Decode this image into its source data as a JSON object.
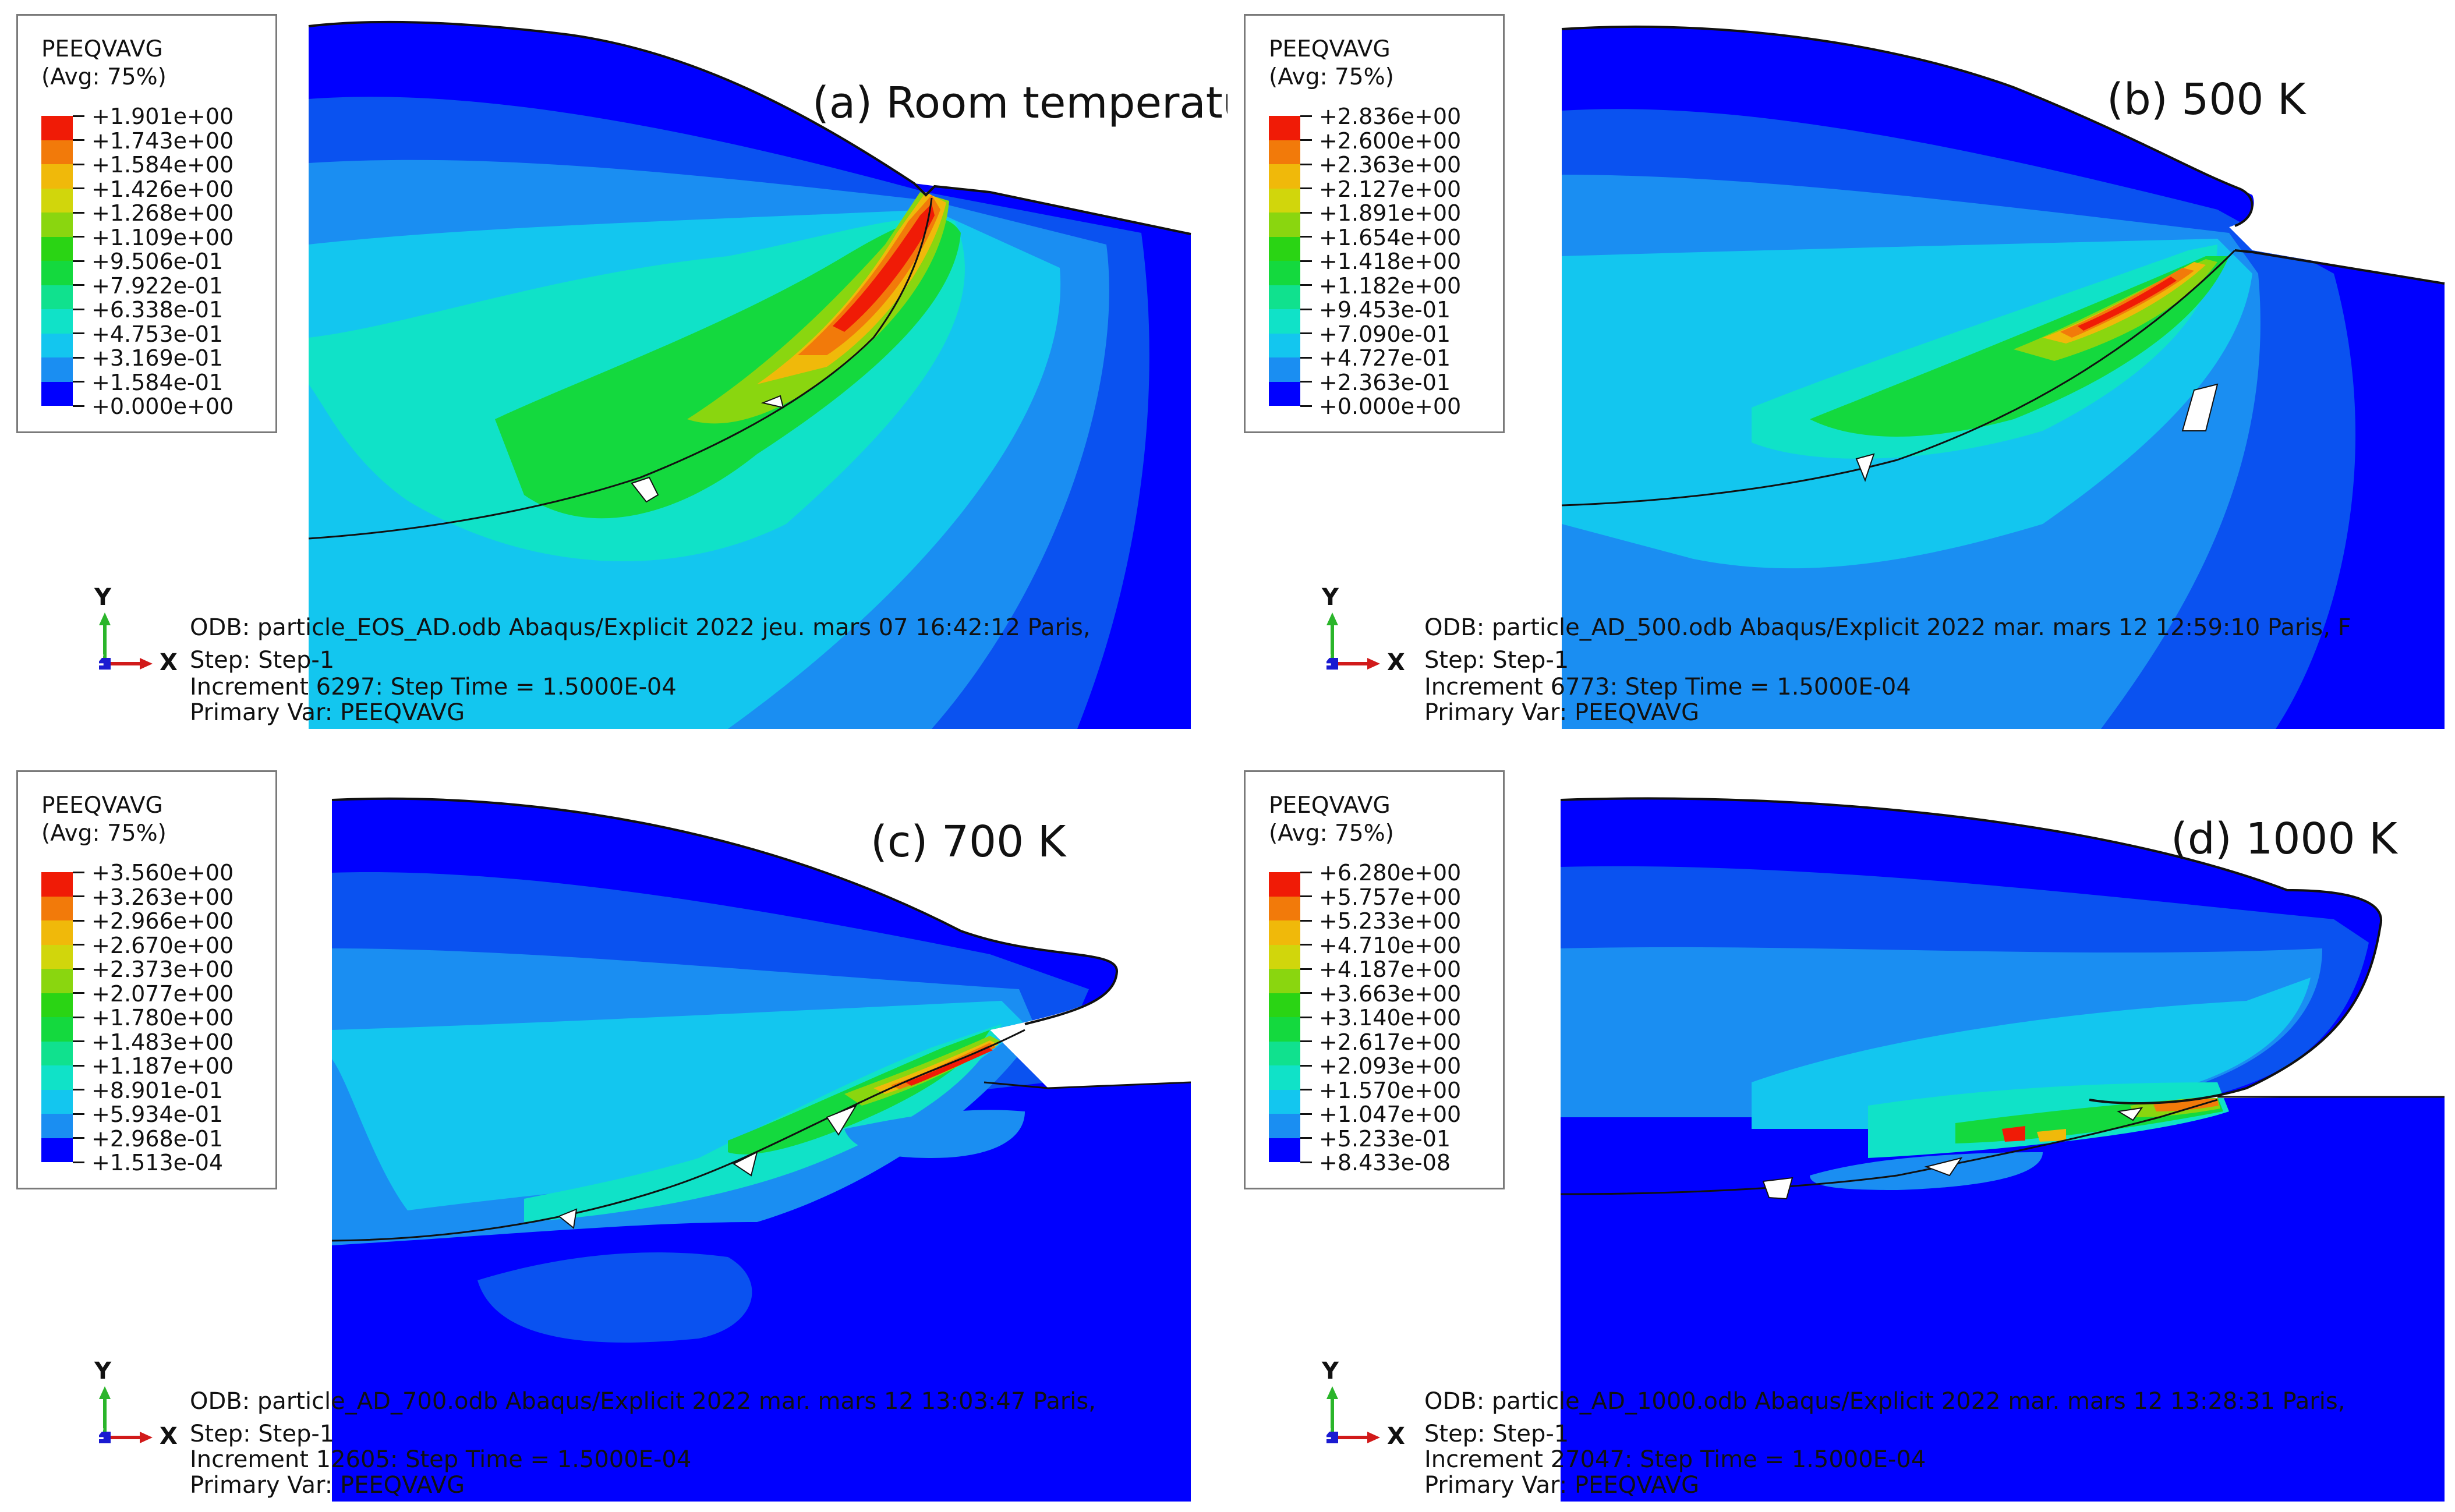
{
  "colors": {
    "bg": "#ffffff",
    "line": "#111111",
    "scale": [
      "#0000ff",
      "#0a52f0",
      "#1a8ef2",
      "#13c6ef",
      "#10e2c8",
      "#10e18e",
      "#14d93e",
      "#2ad414",
      "#8ad60f",
      "#d1d60c",
      "#f0b90a",
      "#f27a0a",
      "#f01b06"
    ]
  },
  "panels": [
    {
      "label": "(a) Room temperature",
      "legend": {
        "title": "PEEQVAVG",
        "avg": "(Avg: 75%)",
        "levels": [
          "+1.901e+00",
          "+1.743e+00",
          "+1.584e+00",
          "+1.426e+00",
          "+1.268e+00",
          "+1.109e+00",
          "+9.506e-01",
          "+7.922e-01",
          "+6.338e-01",
          "+4.753e-01",
          "+3.169e-01",
          "+1.584e-01",
          "+0.000e+00"
        ]
      },
      "axis_y": "Y",
      "axis_x": "X",
      "axis_z": "Z",
      "odb": "ODB: particle_EOS_AD.odb    Abaqus/Explicit 2022    jeu. mars 07 16:42:12 Paris,",
      "step": "Step: Step-1",
      "increment": "Increment      6297: Step Time =    1.5000E-04",
      "primary": "Primary Var: PEEQVAVG"
    },
    {
      "label": "(b) 500 K",
      "legend": {
        "title": "PEEQVAVG",
        "avg": "(Avg: 75%)",
        "levels": [
          "+2.836e+00",
          "+2.600e+00",
          "+2.363e+00",
          "+2.127e+00",
          "+1.891e+00",
          "+1.654e+00",
          "+1.418e+00",
          "+1.182e+00",
          "+9.453e-01",
          "+7.090e-01",
          "+4.727e-01",
          "+2.363e-01",
          "+0.000e+00"
        ]
      },
      "axis_y": "Y",
      "axis_x": "X",
      "axis_z": "Z",
      "odb": "ODB: particle_AD_500.odb    Abaqus/Explicit 2022    mar. mars 12 12:59:10 Paris, F",
      "step": "Step: Step-1",
      "increment": "Increment      6773: Step Time =    1.5000E-04",
      "primary": "Primary Var: PEEQVAVG"
    },
    {
      "label": "(c) 700 K",
      "legend": {
        "title": "PEEQVAVG",
        "avg": "(Avg: 75%)",
        "levels": [
          "+3.560e+00",
          "+3.263e+00",
          "+2.966e+00",
          "+2.670e+00",
          "+2.373e+00",
          "+2.077e+00",
          "+1.780e+00",
          "+1.483e+00",
          "+1.187e+00",
          "+8.901e-01",
          "+5.934e-01",
          "+2.968e-01",
          "+1.513e-04"
        ]
      },
      "axis_y": "Y",
      "axis_x": "X",
      "axis_z": "Z",
      "odb": "ODB: particle_AD_700.odb    Abaqus/Explicit 2022    mar. mars 12 13:03:47 Paris,",
      "step": "Step: Step-1",
      "increment": "Increment     12605: Step Time =    1.5000E-04",
      "primary": "Primary Var: PEEQVAVG"
    },
    {
      "label": "(d) 1000 K",
      "legend": {
        "title": "PEEQVAVG",
        "avg": "(Avg: 75%)",
        "levels": [
          "+6.280e+00",
          "+5.757e+00",
          "+5.233e+00",
          "+4.710e+00",
          "+4.187e+00",
          "+3.663e+00",
          "+3.140e+00",
          "+2.617e+00",
          "+2.093e+00",
          "+1.570e+00",
          "+1.047e+00",
          "+5.233e-01",
          "+8.433e-08"
        ]
      },
      "axis_y": "Y",
      "axis_x": "X",
      "axis_z": "Z",
      "odb": "ODB: particle_AD_1000.odb    Abaqus/Explicit 2022    mar. mars 12 13:28:31 Paris,",
      "step": "Step: Step-1",
      "increment": "Increment     27047: Step Time =    1.5000E-04",
      "primary": "Primary Var: PEEQVAVG"
    }
  ]
}
